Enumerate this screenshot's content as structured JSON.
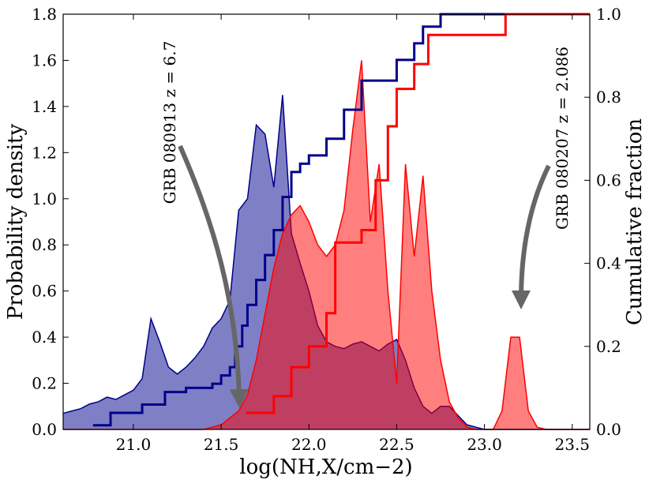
{
  "chart_data": {
    "type": "area",
    "xlabel": "log(NH,X/cm−2)",
    "ylabel": "Probability density",
    "y2label": "Cumulative fraction",
    "annotations": [
      "GRB 080913 z = 6.7",
      "GRB 080207 z = 2.086"
    ],
    "xlim": [
      20.6,
      23.6
    ],
    "ylim": [
      0,
      1.8
    ],
    "y2lim": [
      0,
      1
    ],
    "xticks": [
      {
        "value": 21,
        "label": "21.0"
      },
      21.5,
      {
        "value": 22,
        "label": "22.0"
      },
      22.5,
      {
        "value": 23,
        "label": "23.0"
      },
      23.5
    ],
    "yticks": [
      {
        "value": 0,
        "label": "0.0"
      },
      0.2,
      0.4,
      0.6,
      0.8,
      {
        "value": 1,
        "label": "1.0"
      },
      1.2,
      1.4,
      1.6,
      1.8
    ],
    "y2ticks": [
      {
        "value": 0,
        "label": "0.0"
      },
      0.2,
      0.4,
      0.6,
      0.8,
      {
        "value": 1,
        "label": "1.0"
      }
    ],
    "x": [
      20.6,
      20.65,
      20.7,
      20.75,
      20.8,
      20.85,
      20.9,
      20.95,
      21.0,
      21.05,
      21.1,
      21.15,
      21.2,
      21.25,
      21.3,
      21.35,
      21.4,
      21.45,
      21.5,
      21.55,
      21.6,
      21.65,
      21.7,
      21.75,
      21.8,
      21.85,
      21.9,
      21.95,
      22.0,
      22.05,
      22.1,
      22.15,
      22.2,
      22.25,
      22.3,
      22.35,
      22.4,
      22.45,
      22.5,
      22.55,
      22.6,
      22.65,
      22.7,
      22.75,
      22.8,
      22.85,
      22.9,
      22.95,
      23.0,
      23.05,
      23.1,
      23.15,
      23.2,
      23.25,
      23.3,
      23.35,
      23.4,
      23.45,
      23.5,
      23.55,
      23.6
    ],
    "series": [
      {
        "type": "area",
        "color": "#00008b",
        "values": [
          0.07,
          0.08,
          0.09,
          0.11,
          0.12,
          0.14,
          0.13,
          0.15,
          0.17,
          0.22,
          0.48,
          0.38,
          0.27,
          0.24,
          0.27,
          0.31,
          0.36,
          0.44,
          0.48,
          0.56,
          0.95,
          1.0,
          1.32,
          1.28,
          1.05,
          1.45,
          0.85,
          0.72,
          0.6,
          0.45,
          0.38,
          0.36,
          0.35,
          0.37,
          0.38,
          0.36,
          0.34,
          0.37,
          0.39,
          0.3,
          0.18,
          0.1,
          0.07,
          0.1,
          0.1,
          0.06,
          0.02,
          0.01,
          0,
          0,
          0,
          0,
          0,
          0,
          0,
          0,
          0,
          0,
          0,
          0,
          0
        ]
      },
      {
        "type": "area",
        "color": "#ff0000",
        "values": [
          0,
          0,
          0,
          0,
          0,
          0,
          0,
          0,
          0,
          0,
          0,
          0,
          0,
          0,
          0,
          0,
          0,
          0.01,
          0.02,
          0.05,
          0.08,
          0.15,
          0.3,
          0.5,
          0.7,
          0.85,
          0.93,
          0.97,
          0.9,
          0.8,
          0.75,
          0.8,
          0.95,
          1.3,
          1.6,
          0.9,
          1.15,
          0.6,
          0.2,
          1.15,
          0.75,
          1.1,
          0.6,
          0.3,
          0.12,
          0.05,
          0.01,
          0,
          0,
          0,
          0.08,
          0.4,
          0.4,
          0.08,
          0.01,
          0,
          0,
          0,
          0,
          0,
          0
        ]
      },
      {
        "type": "step",
        "axis": "y2",
        "color": "#00008b",
        "x": [
          20.77,
          20.87,
          21.05,
          21.18,
          21.3,
          21.45,
          21.5,
          21.55,
          21.58,
          21.62,
          21.65,
          21.7,
          21.75,
          21.8,
          21.85,
          21.9,
          21.95,
          22.0,
          22.1,
          22.2,
          22.3,
          22.5,
          22.6,
          22.65,
          22.75,
          23.6
        ],
        "values": [
          0.01,
          0.04,
          0.06,
          0.09,
          0.1,
          0.11,
          0.13,
          0.15,
          0.2,
          0.25,
          0.3,
          0.36,
          0.42,
          0.48,
          0.56,
          0.62,
          0.64,
          0.66,
          0.7,
          0.77,
          0.84,
          0.89,
          0.93,
          0.97,
          1,
          1
        ]
      },
      {
        "type": "step",
        "axis": "y2",
        "color": "#ff0000",
        "x": [
          21.64,
          21.8,
          21.9,
          22.0,
          22.1,
          22.15,
          22.3,
          22.38,
          22.45,
          22.5,
          22.6,
          22.68,
          23.12,
          23.6
        ],
        "values": [
          0.04,
          0.08,
          0.15,
          0.2,
          0.28,
          0.45,
          0.48,
          0.6,
          0.73,
          0.82,
          0.88,
          0.95,
          1,
          1
        ]
      }
    ]
  }
}
